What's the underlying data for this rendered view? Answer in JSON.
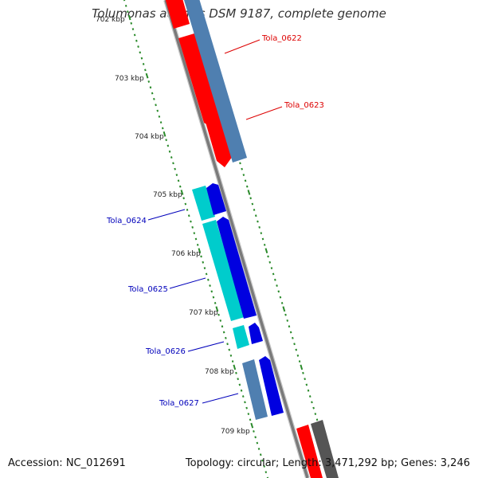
{
  "title": "Tolumonas auensis DSM 9187, complete genome",
  "footer": {
    "accession": "Accession: NC_012691",
    "summary": "Topology: circular; Length: 3,471,292 bp; Genes: 3,246"
  },
  "colors": {
    "backbone": "#7a7a7a",
    "tick": "#2a8a2a",
    "gene_red": "#ff0000",
    "gene_steel": "#4f7fb0",
    "gene_cyan": "#00cccc",
    "gene_blue": "#0000e0",
    "gene_gray": "#555555",
    "label_red": "#dd0000",
    "label_blue": "#0000bb"
  },
  "scale": {
    "labels": [
      "702 kbp",
      "703 kbp",
      "704 kbp",
      "705 kbp",
      "706 kbp",
      "707 kbp",
      "708 kbp",
      "709 kbp"
    ]
  },
  "genes": [
    {
      "label": "Tola_0622",
      "color": "red"
    },
    {
      "label": "Tola_0623",
      "color": "red"
    },
    {
      "label": "Tola_0624",
      "color": "blue"
    },
    {
      "label": "Tola_0625",
      "color": "blue"
    },
    {
      "label": "Tola_0626",
      "color": "blue"
    },
    {
      "label": "Tola_0627",
      "color": "blue"
    }
  ]
}
